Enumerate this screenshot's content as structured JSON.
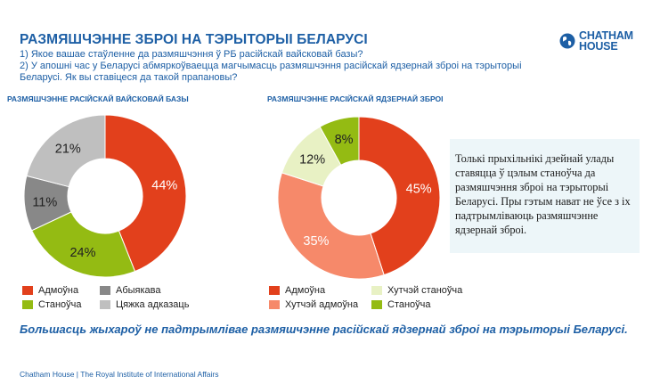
{
  "header": {
    "title": "РАЗМЯШЧЭННЕ ЗБРОІ НА ТЭРЫТОРЫІ БЕЛАРУСІ",
    "question1": "1) Якое вашае стаўленне да размяшчэння ў РБ расійскай вайсковай базы?",
    "question2": "2) У апошні час у Беларусі абмяркоўваецца магчымасць размяшчэння расійскай ядзернай зброі на тэрыторыі Беларусі. Як вы ставіцеся да такой прапановы?"
  },
  "logo": {
    "line1": "CHATHAM",
    "line2": "HOUSE",
    "icon": "globe-icon",
    "color": "#1d5fa5"
  },
  "chart_data": [
    {
      "type": "pie",
      "title": "РАЗМЯШЧЭННЕ РАСІЙСКАЙ ВАЙСКОВАЙ БАЗЫ",
      "donut": true,
      "categories": [
        "Адмоўна",
        "Станоўча",
        "Абыякава",
        "Цяжка адказаць"
      ],
      "values": [
        44,
        24,
        11,
        21
      ],
      "labels": [
        "44%",
        "24%",
        "11%",
        "21%"
      ],
      "colors": [
        "#e2401c",
        "#94bb13",
        "#888888",
        "#bfbfbf"
      ],
      "label_colors": [
        "#ffffff",
        "#222222",
        "#222222",
        "#222222"
      ],
      "legend": [
        "Адмоўна",
        "Абыякава",
        "Станоўча",
        "Цяжка адказаць"
      ],
      "legend_colors": [
        "#e2401c",
        "#888888",
        "#94bb13",
        "#bfbfbf"
      ],
      "legend_position": "bottom"
    },
    {
      "type": "pie",
      "title": "РАЗМЯШЧЭННЕ РАСІЙСКАЙ ЯДЗЕРНАЙ ЗБРОІ",
      "donut": true,
      "categories": [
        "Адмоўна",
        "Хутчэй адмоўна",
        "Хутчэй станоўча",
        "Станоўча"
      ],
      "values": [
        45,
        35,
        12,
        8
      ],
      "labels": [
        "45%",
        "35%",
        "12%",
        "8%"
      ],
      "colors": [
        "#e2401c",
        "#f6896a",
        "#e8f1c4",
        "#94bb13"
      ],
      "label_colors": [
        "#ffffff",
        "#ffffff",
        "#222222",
        "#222222"
      ],
      "legend": [
        "Адмоўна",
        "Хутчэй станоўча",
        "Хутчэй адмоўна",
        "Станоўча"
      ],
      "legend_colors": [
        "#e2401c",
        "#e8f1c4",
        "#f6896a",
        "#94bb13"
      ],
      "legend_position": "bottom"
    }
  ],
  "callout": "Толькі прыхільнікі дзейнай улады ставяцца ў цэлым станоўча да размяшчэння зброі на тэрыторыі Беларусі. Пры гэтым нават не ўсе з іх падтрымліваюць размяшчэнне ядзернай зброі.",
  "conclusion": "Большасць жыхароў не падтрымлівае размяшчэнне расійскай ядзернай зброі на тэрыторыі Беларусі.",
  "footer": "Chatham House  |  The Royal Institute of International Affairs"
}
